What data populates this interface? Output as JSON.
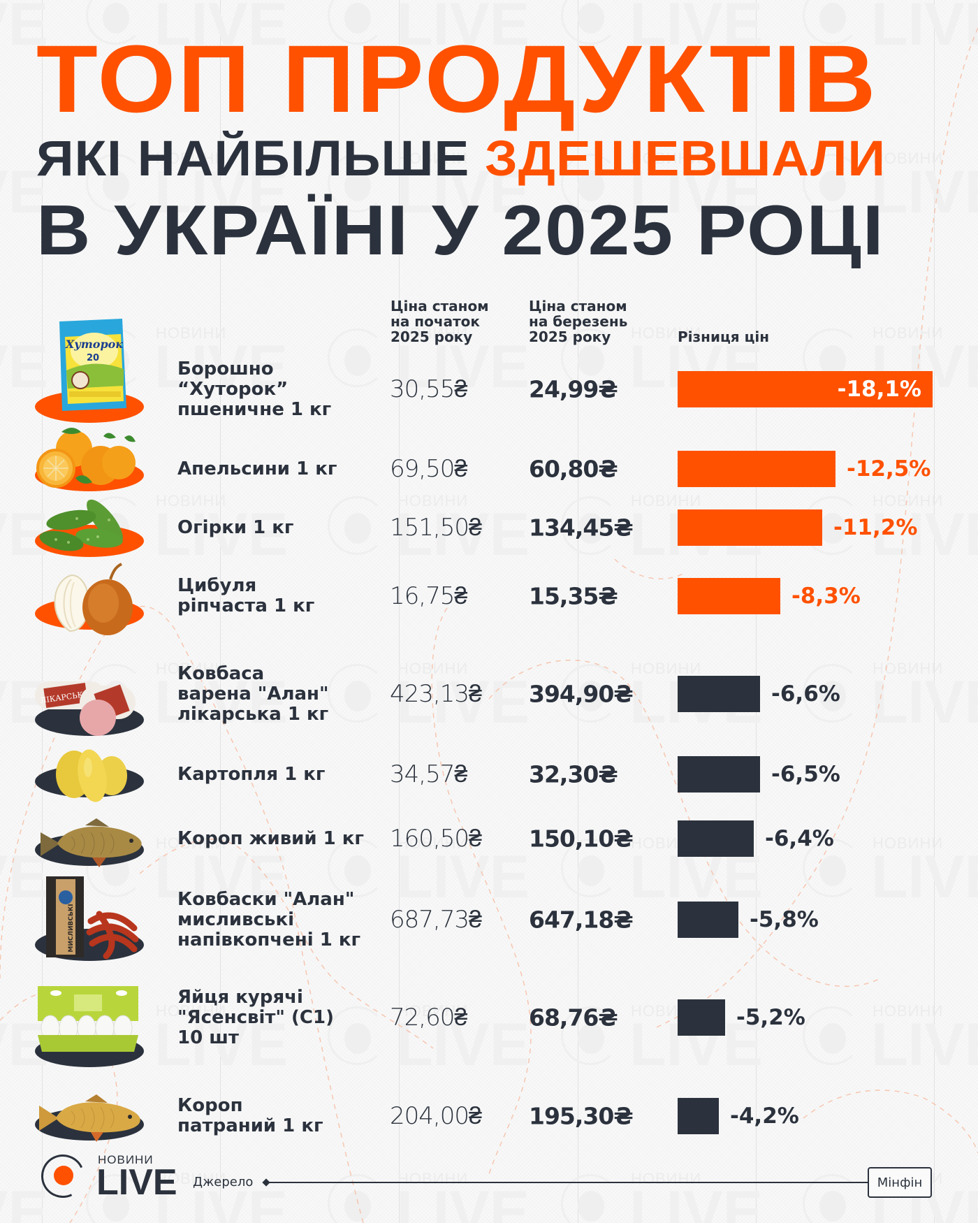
{
  "header": {
    "title_line1": "ТОП ПРОДУКТІВ",
    "title_line2_prefix": "ЯКІ НАЙБІЛЬШЕ",
    "title_line2_accent": "ЗДЕШЕВШАЛИ",
    "title_line3": "В УКРАЇНІ У 2025 РОЦІ"
  },
  "columns": {
    "start_price": [
      "Ціна станом",
      "на початок",
      "2025 року"
    ],
    "march_price": [
      "Ціна станом",
      "на березень",
      "2025 року"
    ],
    "difference": "Різниця цін"
  },
  "colors": {
    "accent": "#ff5100",
    "dark": "#2b323d",
    "background": "#f9f9f9"
  },
  "rows": [
    {
      "name_lines": [
        "Борошно",
        "“Хуторок”",
        "пшеничне 1 кг"
      ],
      "icon": "flour-bag-icon",
      "price_start": "30,55₴",
      "price_march": "24,99₴",
      "change": "-18,1%",
      "color": "orange"
    },
    {
      "name_lines": [
        "Апельсини 1 кг"
      ],
      "icon": "oranges-icon",
      "price_start": "69,50₴",
      "price_march": "60,80₴",
      "change": "-12,5%",
      "color": "orange"
    },
    {
      "name_lines": [
        "Огірки 1 кг"
      ],
      "icon": "cucumbers-icon",
      "price_start": "151,50₴",
      "price_march": "134,45₴",
      "change": "-11,2%",
      "color": "orange"
    },
    {
      "name_lines": [
        "Цибуля",
        "ріпчаста 1 кг"
      ],
      "icon": "onion-icon",
      "price_start": "16,75₴",
      "price_march": "15,35₴",
      "change": "-8,3%",
      "color": "orange"
    },
    {
      "name_lines": [
        "Ковбаса",
        "варена \"Алан\"",
        "лікарська 1 кг"
      ],
      "icon": "boiled-sausage-icon",
      "price_start": "423,13₴",
      "price_march": "394,90₴",
      "change": "-6,6%",
      "color": "dark"
    },
    {
      "name_lines": [
        "Картопля 1 кг"
      ],
      "icon": "potatoes-icon",
      "price_start": "34,57₴",
      "price_march": "32,30₴",
      "change": "-6,5%",
      "color": "dark"
    },
    {
      "name_lines": [
        "Короп живий 1 кг"
      ],
      "icon": "live-carp-icon",
      "price_start": "160,50₴",
      "price_march": "150,10₴",
      "change": "-6,4%",
      "color": "dark"
    },
    {
      "name_lines": [
        "Ковбаски \"Алан\"",
        "мисливські",
        "напівкопчені 1 кг"
      ],
      "icon": "hunting-sausages-icon",
      "price_start": "687,73₴",
      "price_march": "647,18₴",
      "change": "-5,8%",
      "color": "dark"
    },
    {
      "name_lines": [
        "Яйця курячі",
        "\"Ясенсвіт\" (С1)",
        "10 шт"
      ],
      "icon": "eggs-carton-icon",
      "price_start": "72,60₴",
      "price_march": "68,76₴",
      "change": "-5,2%",
      "color": "dark"
    },
    {
      "name_lines": [
        "Короп",
        "патраний 1 кг"
      ],
      "icon": "gutted-carp-icon",
      "price_start": "204,00₴",
      "price_march": "195,30₴",
      "change": "-4,2%",
      "color": "dark"
    }
  ],
  "footer": {
    "logo_small": "НОВИНИ",
    "logo_big": "LIVE",
    "source_label": "Джерело",
    "source_value": "Мінфін"
  },
  "watermark": {
    "small": "НОВИНИ",
    "big": "LIVE"
  },
  "chart_data": {
    "type": "bar",
    "orientation": "horizontal",
    "title": "ТОП ПРОДУКТІВ ЯКІ НАЙБІЛЬШЕ ЗДЕШЕВШАЛИ В УКРАЇНІ У 2025 РОЦІ",
    "xlabel": "Різниця цін",
    "ylabel": "",
    "unit": "%",
    "categories": [
      "Борошно “Хуторок” пшеничне 1 кг",
      "Апельсини 1 кг",
      "Огірки 1 кг",
      "Цибуля ріпчаста 1 кг",
      "Ковбаса варена \"Алан\" лікарська 1 кг",
      "Картопля 1 кг",
      "Короп живий 1 кг",
      "Ковбаски \"Алан\" мисливські напівкопчені 1 кг",
      "Яйця курячі \"Ясенсвіт\" (С1) 10 шт",
      "Короп патраний 1 кг"
    ],
    "values": [
      -18.1,
      -12.5,
      -11.2,
      -8.3,
      -6.6,
      -6.5,
      -6.4,
      -5.8,
      -5.2,
      -4.2
    ],
    "series": [
      {
        "name": "Ціна станом на початок 2025 року (₴)",
        "values": [
          30.55,
          69.5,
          151.5,
          16.75,
          423.13,
          34.57,
          160.5,
          687.73,
          72.6,
          204.0
        ]
      },
      {
        "name": "Ціна станом на березень 2025 року (₴)",
        "values": [
          24.99,
          60.8,
          134.45,
          15.35,
          394.9,
          32.3,
          150.1,
          647.18,
          68.76,
          195.3
        ]
      },
      {
        "name": "Різниця цін (%)",
        "values": [
          -18.1,
          -12.5,
          -11.2,
          -8.3,
          -6.6,
          -6.5,
          -6.4,
          -5.8,
          -5.2,
          -4.2
        ]
      }
    ],
    "bar_colors": [
      "#ff5100",
      "#ff5100",
      "#ff5100",
      "#ff5100",
      "#2b323d",
      "#2b323d",
      "#2b323d",
      "#2b323d",
      "#2b323d",
      "#2b323d"
    ],
    "grid": false,
    "legend": "none",
    "source": "Мінфін"
  }
}
